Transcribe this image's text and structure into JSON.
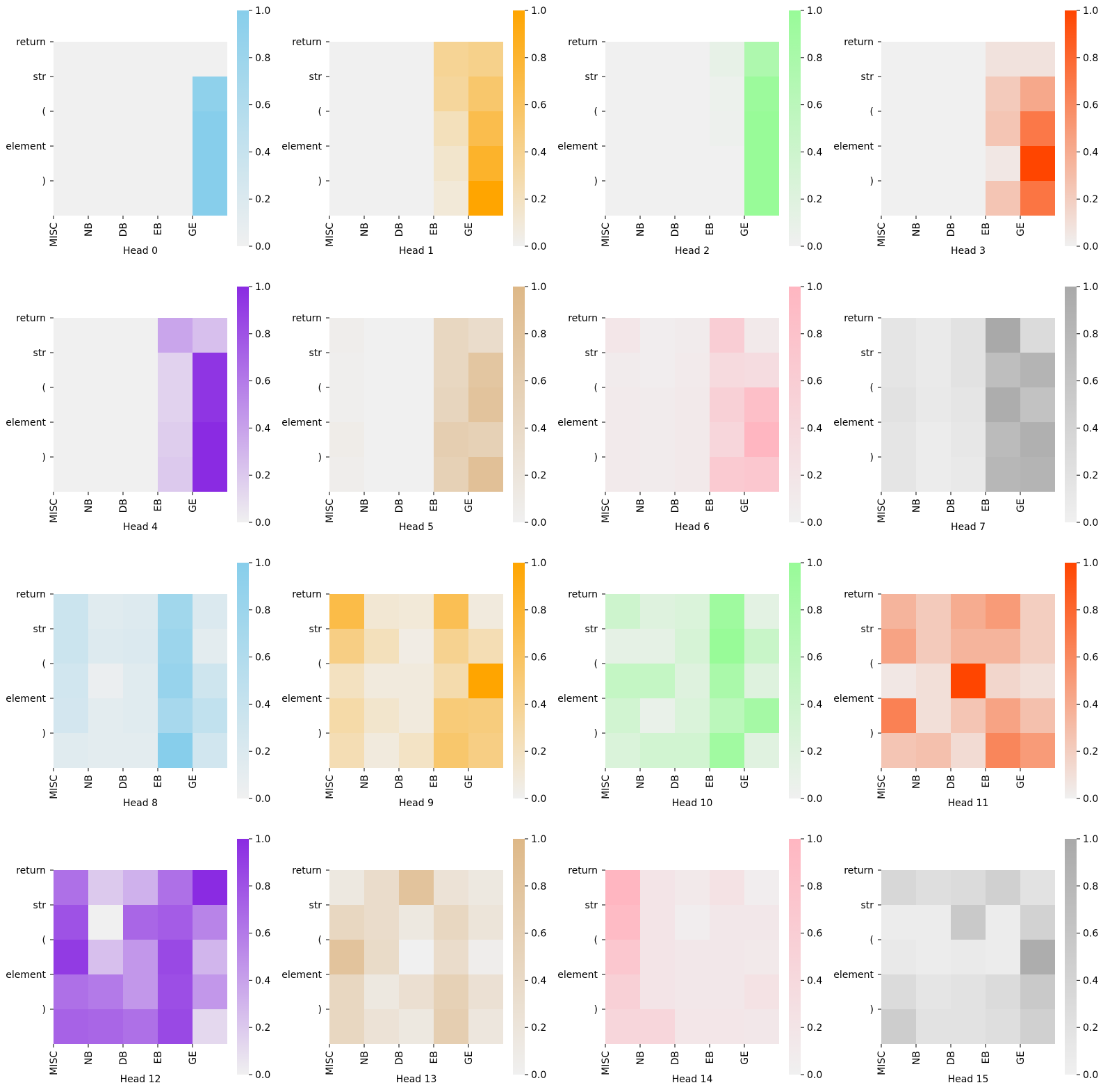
{
  "chart_data": {
    "type": "heatmap",
    "value_range": [
      0,
      1
    ],
    "row_labels": [
      "return",
      "str",
      "(",
      "element",
      ")"
    ],
    "col_labels": [
      "MISC",
      "NB",
      "DB",
      "EB",
      "GE"
    ],
    "colorbar_ticks": [
      "0.0",
      "0.2",
      "0.4",
      "0.6",
      "0.8",
      "1.0"
    ],
    "colormap_low": "#f0f0f0",
    "panels": [
      {
        "title": "Head 0",
        "color": "#87ceeb",
        "values": [
          [
            0,
            0,
            0,
            0,
            0
          ],
          [
            0,
            0,
            0,
            0,
            0.92
          ],
          [
            0,
            0,
            0,
            0,
            1.0
          ],
          [
            0,
            0,
            0,
            0,
            1.0
          ],
          [
            0,
            0,
            0,
            0,
            1.0
          ]
        ]
      },
      {
        "title": "Head 1",
        "color": "#ffa500",
        "values": [
          [
            0,
            0,
            0,
            0.38,
            0.42
          ],
          [
            0,
            0,
            0,
            0.35,
            0.55
          ],
          [
            0,
            0,
            0,
            0.22,
            0.68
          ],
          [
            0,
            0,
            0,
            0.15,
            0.82
          ],
          [
            0,
            0,
            0,
            0.1,
            1.0
          ]
        ]
      },
      {
        "title": "Head 2",
        "color": "#98fb98",
        "values": [
          [
            0,
            0,
            0,
            0.1,
            0.75
          ],
          [
            0,
            0,
            0,
            0.05,
            0.95
          ],
          [
            0,
            0,
            0,
            0.03,
            1.0
          ],
          [
            0,
            0,
            0,
            0,
            1.0
          ],
          [
            0,
            0,
            0,
            0,
            1.0
          ]
        ]
      },
      {
        "title": "Head 3",
        "color": "#ff4500",
        "values": [
          [
            0,
            0,
            0,
            0.08,
            0.08
          ],
          [
            0,
            0,
            0,
            0.22,
            0.42
          ],
          [
            0,
            0,
            0,
            0.25,
            0.7
          ],
          [
            0,
            0,
            0,
            0.05,
            1.0
          ],
          [
            0,
            0,
            0,
            0.25,
            0.72
          ]
        ]
      },
      {
        "title": "Head 4",
        "color": "#8a2be2",
        "values": [
          [
            0,
            0,
            0,
            0.38,
            0.25
          ],
          [
            0,
            0,
            0,
            0.15,
            0.95
          ],
          [
            0,
            0,
            0,
            0.15,
            0.95
          ],
          [
            0,
            0,
            0,
            0.18,
            1.0
          ],
          [
            0,
            0,
            0,
            0.2,
            1.0
          ]
        ]
      },
      {
        "title": "Head 5",
        "color": "#deb887",
        "values": [
          [
            0.05,
            0,
            0,
            0.45,
            0.35
          ],
          [
            0.03,
            0,
            0,
            0.45,
            0.75
          ],
          [
            0.03,
            0,
            0,
            0.48,
            0.8
          ],
          [
            0.08,
            0,
            0,
            0.6,
            0.55
          ],
          [
            0.05,
            0,
            0,
            0.55,
            0.85
          ]
        ]
      },
      {
        "title": "Head 6",
        "color": "#ffb6c1",
        "values": [
          [
            0.18,
            0.05,
            0.08,
            0.6,
            0.12
          ],
          [
            0.08,
            0.05,
            0.1,
            0.38,
            0.35
          ],
          [
            0.1,
            0.08,
            0.12,
            0.55,
            0.85
          ],
          [
            0.1,
            0.08,
            0.12,
            0.45,
            1.0
          ],
          [
            0.1,
            0.08,
            0.12,
            0.65,
            0.7
          ]
        ]
      },
      {
        "title": "Head 7",
        "color": "#a9a9a9",
        "values": [
          [
            0.15,
            0.08,
            0.2,
            1.0,
            0.3
          ],
          [
            0.15,
            0.08,
            0.2,
            0.7,
            0.85
          ],
          [
            0.2,
            0.1,
            0.15,
            0.95,
            0.65
          ],
          [
            0.15,
            0.05,
            0.12,
            0.75,
            0.9
          ],
          [
            0.15,
            0.05,
            0.1,
            0.8,
            0.85
          ]
        ]
      },
      {
        "title": "Head 8",
        "color": "#87ceeb",
        "values": [
          [
            0.35,
            0.15,
            0.18,
            0.75,
            0.2
          ],
          [
            0.35,
            0.18,
            0.2,
            0.8,
            0.12
          ],
          [
            0.3,
            0.05,
            0.15,
            0.85,
            0.32
          ],
          [
            0.28,
            0.12,
            0.15,
            0.7,
            0.45
          ],
          [
            0.15,
            0.12,
            0.12,
            1.0,
            0.3
          ]
        ]
      },
      {
        "title": "Head 9",
        "color": "#ffa500",
        "values": [
          [
            0.7,
            0.12,
            0.1,
            0.65,
            0.08
          ],
          [
            0.45,
            0.22,
            0.05,
            0.4,
            0.25
          ],
          [
            0.2,
            0.08,
            0.08,
            0.28,
            1.0
          ],
          [
            0.3,
            0.15,
            0.08,
            0.5,
            0.48
          ],
          [
            0.25,
            0.08,
            0.18,
            0.55,
            0.45
          ]
        ]
      },
      {
        "title": "Head 10",
        "color": "#98fb98",
        "values": [
          [
            0.4,
            0.2,
            0.25,
            0.92,
            0.15
          ],
          [
            0.12,
            0.12,
            0.3,
            1.0,
            0.45
          ],
          [
            0.5,
            0.5,
            0.2,
            0.8,
            0.2
          ],
          [
            0.35,
            0.08,
            0.25,
            0.6,
            0.85
          ],
          [
            0.25,
            0.35,
            0.35,
            0.9,
            0.18
          ]
        ]
      },
      {
        "title": "Head 11",
        "color": "#ff4500",
        "values": [
          [
            0.35,
            0.22,
            0.4,
            0.5,
            0.2
          ],
          [
            0.45,
            0.22,
            0.35,
            0.35,
            0.2
          ],
          [
            0.05,
            0.1,
            1.0,
            0.15,
            0.1
          ],
          [
            0.65,
            0.1,
            0.25,
            0.45,
            0.28
          ],
          [
            0.25,
            0.28,
            0.12,
            0.62,
            0.5
          ]
        ]
      },
      {
        "title": "Head 12",
        "color": "#8a2be2",
        "values": [
          [
            0.65,
            0.2,
            0.32,
            0.65,
            1.0
          ],
          [
            0.8,
            0.0,
            0.7,
            0.75,
            0.55
          ],
          [
            0.92,
            0.25,
            0.45,
            0.85,
            0.3
          ],
          [
            0.65,
            0.6,
            0.45,
            0.82,
            0.45
          ],
          [
            0.72,
            0.7,
            0.65,
            0.85,
            0.12
          ]
        ]
      },
      {
        "title": "Head 13",
        "color": "#deb887",
        "values": [
          [
            0.15,
            0.35,
            0.8,
            0.25,
            0.15
          ],
          [
            0.45,
            0.35,
            0.15,
            0.45,
            0.22
          ],
          [
            0.8,
            0.38,
            0.0,
            0.35,
            0.05
          ],
          [
            0.45,
            0.15,
            0.3,
            0.55,
            0.28
          ],
          [
            0.45,
            0.25,
            0.15,
            0.6,
            0.18
          ]
        ]
      },
      {
        "title": "Head 14",
        "color": "#ffb6c1",
        "values": [
          [
            1.0,
            0.2,
            0.12,
            0.25,
            0.05
          ],
          [
            0.92,
            0.2,
            0.05,
            0.15,
            0.15
          ],
          [
            0.7,
            0.2,
            0.15,
            0.15,
            0.12
          ],
          [
            0.55,
            0.2,
            0.15,
            0.15,
            0.25
          ],
          [
            0.45,
            0.45,
            0.18,
            0.18,
            0.15
          ]
        ]
      },
      {
        "title": "Head 15",
        "color": "#a9a9a9",
        "values": [
          [
            0.35,
            0.25,
            0.3,
            0.45,
            0.2
          ],
          [
            0.05,
            0.05,
            0.55,
            0.05,
            0.42
          ],
          [
            0.1,
            0.05,
            0.08,
            0.05,
            0.95
          ],
          [
            0.3,
            0.15,
            0.2,
            0.3,
            0.55
          ],
          [
            0.5,
            0.2,
            0.2,
            0.25,
            0.45
          ]
        ]
      }
    ]
  }
}
